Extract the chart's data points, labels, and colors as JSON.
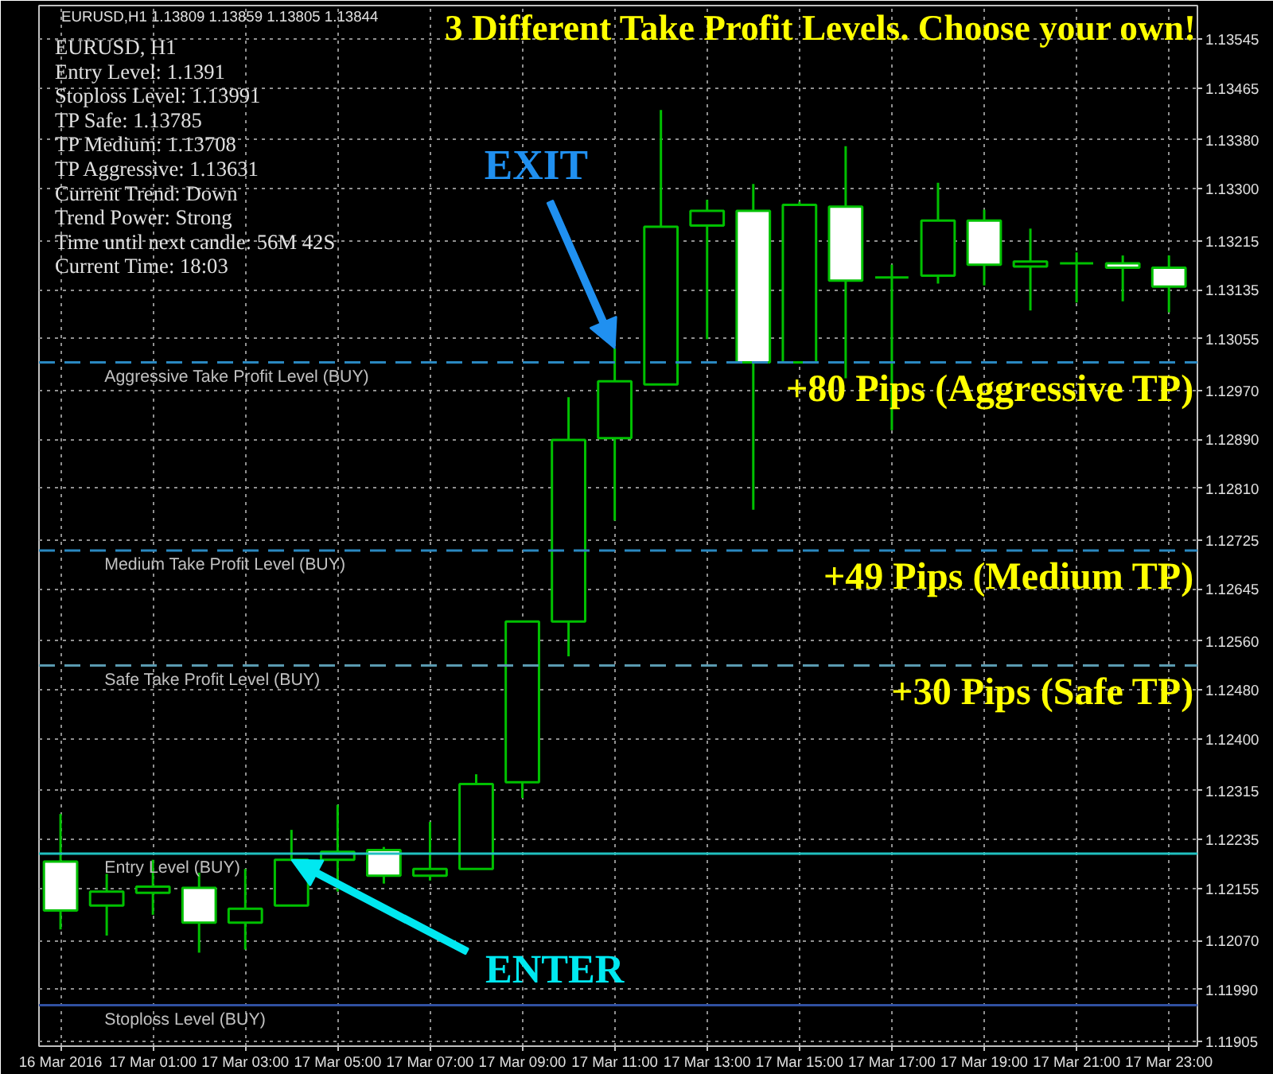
{
  "chart_data": {
    "type": "candlestick",
    "title": "3 Different Take Profit Levels. Choose your own!",
    "x": [
      "2016-03-16T23:00",
      "2016-03-17T00:00",
      "2016-03-17T01:00",
      "2016-03-17T02:00",
      "2016-03-17T03:00",
      "2016-03-17T04:00",
      "2016-03-17T05:00",
      "2016-03-17T06:00",
      "2016-03-17T07:00",
      "2016-03-17T08:00",
      "2016-03-17T09:00",
      "2016-03-17T10:00",
      "2016-03-17T11:00",
      "2016-03-17T12:00",
      "2016-03-17T13:00",
      "2016-03-17T14:00",
      "2016-03-17T15:00",
      "2016-03-17T16:00",
      "2016-03-17T17:00",
      "2016-03-17T18:00",
      "2016-03-17T19:00",
      "2016-03-17T20:00",
      "2016-03-17T21:00",
      "2016-03-17T22:00",
      "2016-03-17T23:00"
    ],
    "ohlc": [
      [
        1.12199,
        1.12277,
        1.12088,
        1.12119
      ],
      [
        1.12127,
        1.12179,
        1.12078,
        1.1215
      ],
      [
        1.12148,
        1.12202,
        1.12112,
        1.12158
      ],
      [
        1.12156,
        1.12181,
        1.1205,
        1.12099
      ],
      [
        1.12099,
        1.12187,
        1.12055,
        1.12122
      ],
      [
        1.12127,
        1.12251,
        1.12127,
        1.12202
      ],
      [
        1.12202,
        1.12292,
        1.1215,
        1.12215
      ],
      [
        1.12218,
        1.12223,
        1.12163,
        1.12176
      ],
      [
        1.12176,
        1.12264,
        1.12168,
        1.12187
      ],
      [
        1.12187,
        1.12342,
        1.12187,
        1.12326
      ],
      [
        1.12329,
        1.12592,
        1.12303,
        1.12592
      ],
      [
        1.12592,
        1.12959,
        1.12535,
        1.12889
      ],
      [
        1.12892,
        1.13039,
        1.12757,
        1.12985
      ],
      [
        1.1298,
        1.13429,
        1.1298,
        1.13238
      ],
      [
        1.1324,
        1.13282,
        1.13054,
        1.13264
      ],
      [
        1.13264,
        1.13308,
        1.12775,
        1.13016
      ],
      [
        1.13016,
        1.13279,
        1.13016,
        1.13274
      ],
      [
        1.13271,
        1.1337,
        1.1299,
        1.1315
      ],
      [
        1.13155,
        1.13176,
        1.12905,
        1.13155
      ],
      [
        1.13158,
        1.1331,
        1.13145,
        1.13248
      ],
      [
        1.13248,
        1.13266,
        1.13142,
        1.13176
      ],
      [
        1.13173,
        1.13235,
        1.13101,
        1.13181
      ],
      [
        1.13178,
        1.13196,
        1.13114,
        1.13178
      ],
      [
        1.13178,
        1.13191,
        1.13116,
        1.13171
      ],
      [
        1.13171,
        1.13191,
        1.13098,
        1.1314
      ]
    ],
    "color": "#00c000",
    "xlim": [
      "2016-03-16T22:32",
      "2016-03-17T23:37"
    ],
    "xticks": [
      {
        "value": "2016-03-16T23:00",
        "label": "16 Mar 2016"
      },
      {
        "value": "2016-03-17T01:00",
        "label": "17 Mar 01:00"
      },
      {
        "value": "2016-03-17T03:00",
        "label": "17 Mar 03:00"
      },
      {
        "value": "2016-03-17T05:00",
        "label": "17 Mar 05:00"
      },
      {
        "value": "2016-03-17T07:00",
        "label": "17 Mar 07:00"
      },
      {
        "value": "2016-03-17T09:00",
        "label": "17 Mar 09:00"
      },
      {
        "value": "2016-03-17T11:00",
        "label": "17 Mar 11:00"
      },
      {
        "value": "2016-03-17T13:00",
        "label": "17 Mar 13:00"
      },
      {
        "value": "2016-03-17T15:00",
        "label": "17 Mar 15:00"
      },
      {
        "value": "2016-03-17T17:00",
        "label": "17 Mar 17:00"
      },
      {
        "value": "2016-03-17T19:00",
        "label": "17 Mar 19:00"
      },
      {
        "value": "2016-03-17T21:00",
        "label": "17 Mar 21:00"
      },
      {
        "value": "2016-03-17T23:00",
        "label": "17 Mar 23:00"
      }
    ],
    "ylim": [
      1.11897,
      1.136
    ],
    "yticks": [
      {
        "value": 1.13545,
        "label": "1.13545"
      },
      {
        "value": 1.13465,
        "label": "1.13465"
      },
      {
        "value": 1.1338,
        "label": "1.13380"
      },
      {
        "value": 1.133,
        "label": "1.13300"
      },
      {
        "value": 1.13215,
        "label": "1.13215"
      },
      {
        "value": 1.13135,
        "label": "1.13135"
      },
      {
        "value": 1.13055,
        "label": "1.13055"
      },
      {
        "value": 1.1297,
        "label": "1.12970"
      },
      {
        "value": 1.1289,
        "label": "1.12890"
      },
      {
        "value": 1.1281,
        "label": "1.12810"
      },
      {
        "value": 1.12725,
        "label": "1.12725"
      },
      {
        "value": 1.12645,
        "label": "1.12645"
      },
      {
        "value": 1.1256,
        "label": "1.12560"
      },
      {
        "value": 1.1248,
        "label": "1.12480"
      },
      {
        "value": 1.124,
        "label": "1.12400"
      },
      {
        "value": 1.12315,
        "label": "1.12315"
      },
      {
        "value": 1.12235,
        "label": "1.12235"
      },
      {
        "value": 1.12155,
        "label": "1.12155"
      },
      {
        "value": 1.1207,
        "label": "1.12070"
      },
      {
        "value": 1.1199,
        "label": "1.11990"
      },
      {
        "value": 1.11905,
        "label": "1.11905"
      }
    ],
    "grid": true,
    "ref_lines": [
      {
        "axis": "y",
        "value": 1.13016,
        "label": "Aggressive Take Profit Level (BUY)",
        "color": "#2a88c0",
        "line_style": "dashed"
      },
      {
        "axis": "y",
        "value": 1.12708,
        "label": "Medium Take Profit Level (BUY)",
        "color": "#2a88c0",
        "line_style": "dashed"
      },
      {
        "axis": "y",
        "value": 1.1252,
        "label": "Safe Take Profit Level (BUY)",
        "color": "#5a9ab0",
        "line_style": "dashed"
      },
      {
        "axis": "y",
        "value": 1.12212,
        "label": "Entry Level (BUY)",
        "color": "#20c0c0",
        "line_style": "solid"
      },
      {
        "axis": "y",
        "value": 1.11964,
        "label": "Stoploss Level (BUY)",
        "color": "#3050a0",
        "line_style": "solid"
      }
    ],
    "annotations": [
      "EURUSD,H1  1.13809 1.13859 1.13805 1.13844",
      "EURUSD, H1",
      "Entry Level:  1.1391",
      "Stoploss Level:  1.13991",
      "TP Safe:  1.13785",
      "TP Medium:  1.13708",
      "TP Aggressive:  1.13631",
      "Current Trend:  Down",
      "Trend Power: Strong",
      "Time until next candle: 56M 42S",
      "Current Time: 18:03",
      "EXIT",
      "ENTER",
      "+80 Pips (Aggressive TP)",
      "+49 Pips (Medium TP)",
      "+30 Pips (Safe TP)"
    ]
  }
}
